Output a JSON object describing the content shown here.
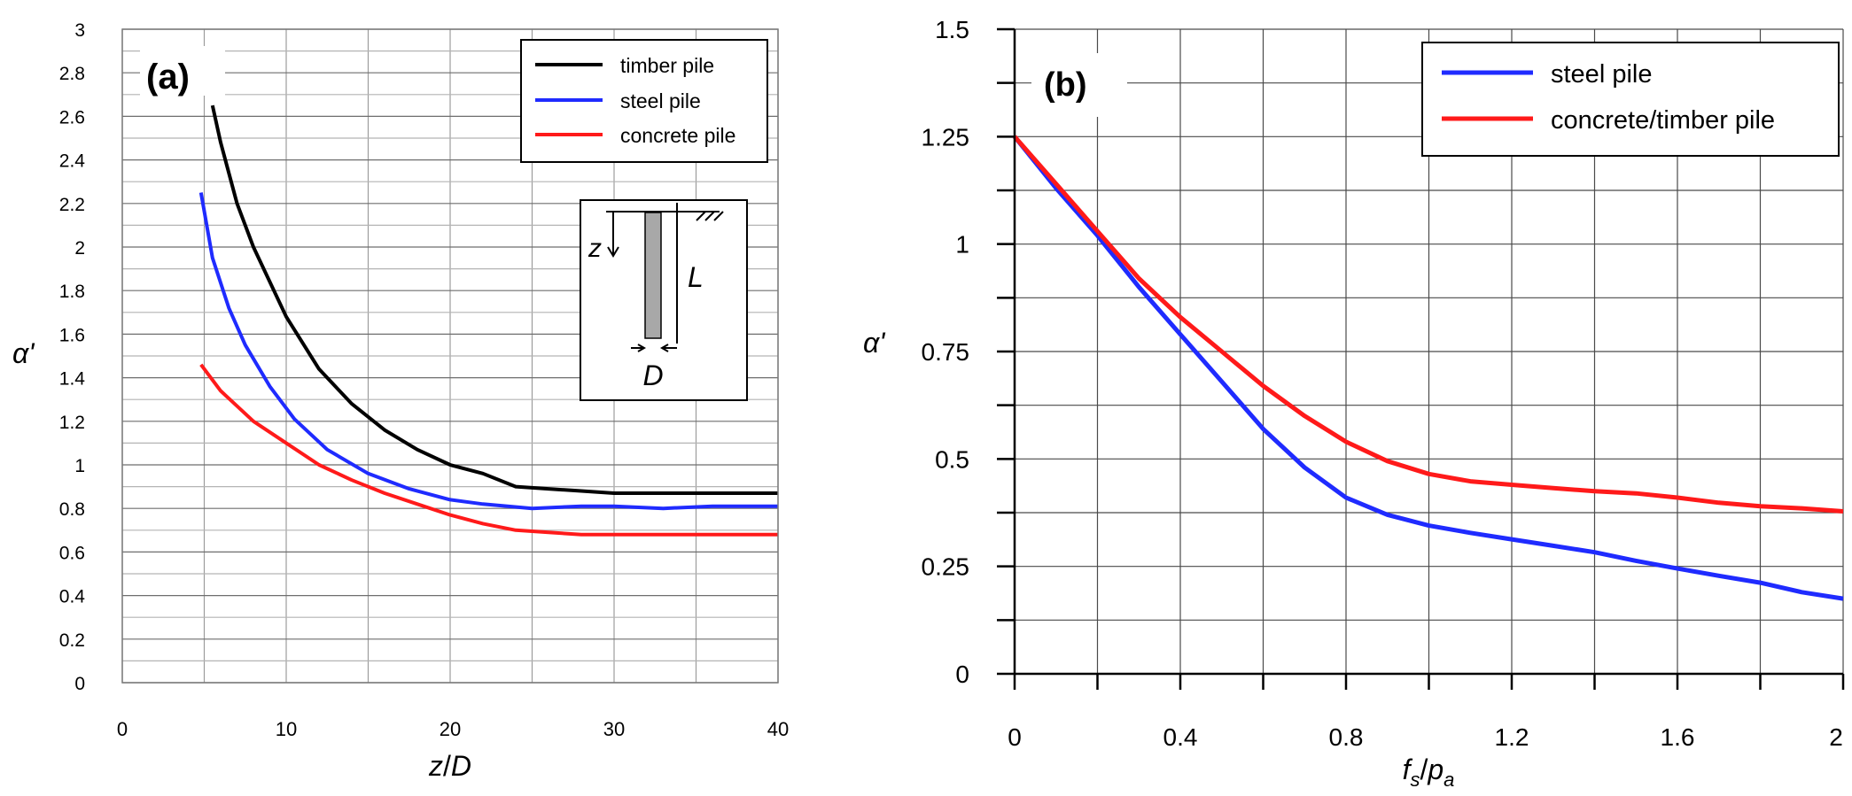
{
  "colors": {
    "black": "#000000",
    "blue": "#1f2bff",
    "red": "#ff1a1a",
    "gridA": "#9a9a9a",
    "gridB": "#4a4a4a"
  },
  "chart_data": [
    {
      "type": "line",
      "panel_label": "(a)",
      "xlabel": "z/D",
      "ylabel": "α'",
      "xlim": [
        0,
        40
      ],
      "ylim": [
        0,
        3
      ],
      "xticks": [
        "0",
        "10",
        "20",
        "30",
        "40"
      ],
      "yticks": [
        "0",
        "0.2",
        "0.4",
        "0.6",
        "0.8",
        "1",
        "1.2",
        "1.4",
        "1.6",
        "1.8",
        "2",
        "2.2",
        "2.4",
        "2.6",
        "2.8",
        "3"
      ],
      "grid": true,
      "legend_position": "top-right",
      "series": [
        {
          "name": "timber pile",
          "color": "#000000",
          "x": [
            5.5,
            6,
            7,
            8,
            10,
            12,
            14,
            16,
            18,
            20,
            22,
            24,
            26,
            28,
            30,
            32,
            34,
            36,
            38,
            40
          ],
          "y": [
            2.65,
            2.48,
            2.2,
            2.0,
            1.68,
            1.44,
            1.28,
            1.16,
            1.07,
            1.0,
            0.96,
            0.9,
            0.89,
            0.88,
            0.87,
            0.87,
            0.87,
            0.87,
            0.87,
            0.87
          ]
        },
        {
          "name": "steel pile",
          "color": "#1f2bff",
          "x": [
            4.8,
            5.5,
            6.5,
            7.5,
            9,
            10.5,
            12.5,
            15,
            17.5,
            20,
            22,
            25,
            28,
            30,
            33,
            36,
            40
          ],
          "y": [
            2.25,
            1.95,
            1.72,
            1.55,
            1.36,
            1.21,
            1.07,
            0.96,
            0.89,
            0.84,
            0.82,
            0.8,
            0.81,
            0.81,
            0.8,
            0.81,
            0.81
          ]
        },
        {
          "name": "concrete pile",
          "color": "#ff1a1a",
          "x": [
            4.8,
            6,
            8,
            10,
            12,
            14,
            16,
            18,
            20,
            22,
            24,
            26,
            28,
            30,
            32,
            34,
            36,
            38,
            40
          ],
          "y": [
            1.46,
            1.34,
            1.2,
            1.1,
            1.0,
            0.93,
            0.87,
            0.82,
            0.77,
            0.73,
            0.7,
            0.69,
            0.68,
            0.68,
            0.68,
            0.68,
            0.68,
            0.68,
            0.68
          ]
        }
      ],
      "inset": {
        "z_label": "z",
        "L_label": "L",
        "D_label": "D"
      }
    },
    {
      "type": "line",
      "panel_label": "(b)",
      "xlabel": "fs/pa",
      "ylabel": "α'",
      "xlim": [
        0,
        2
      ],
      "ylim": [
        0,
        1.5
      ],
      "xticks": [
        "0",
        "0.4",
        "0.8",
        "1.2",
        "1.6",
        "2"
      ],
      "yticks": [
        "0",
        "0.25",
        "0.5",
        "0.75",
        "1",
        "1.25",
        "1.5"
      ],
      "grid": true,
      "legend_position": "top-right",
      "series": [
        {
          "name": "steel pile",
          "color": "#1f2bff",
          "x": [
            0,
            0.1,
            0.2,
            0.3,
            0.4,
            0.5,
            0.6,
            0.7,
            0.8,
            0.9,
            1.0,
            1.1,
            1.2,
            1.3,
            1.4,
            1.5,
            1.6,
            1.7,
            1.8,
            1.9,
            2.0
          ],
          "y": [
            1.25,
            1.13,
            1.02,
            0.9,
            0.79,
            0.68,
            0.57,
            0.48,
            0.41,
            0.37,
            0.345,
            0.328,
            0.313,
            0.298,
            0.283,
            0.263,
            0.245,
            0.228,
            0.212,
            0.19,
            0.175
          ]
        },
        {
          "name": "concrete/timber pile",
          "color": "#ff1a1a",
          "x": [
            0,
            0.1,
            0.2,
            0.3,
            0.4,
            0.5,
            0.6,
            0.7,
            0.8,
            0.9,
            1.0,
            1.1,
            1.2,
            1.3,
            1.4,
            1.5,
            1.6,
            1.7,
            1.8,
            1.9,
            2.0
          ],
          "y": [
            1.25,
            1.14,
            1.03,
            0.92,
            0.83,
            0.75,
            0.67,
            0.6,
            0.54,
            0.495,
            0.465,
            0.448,
            0.44,
            0.432,
            0.425,
            0.42,
            0.41,
            0.398,
            0.39,
            0.385,
            0.378
          ]
        }
      ]
    }
  ]
}
